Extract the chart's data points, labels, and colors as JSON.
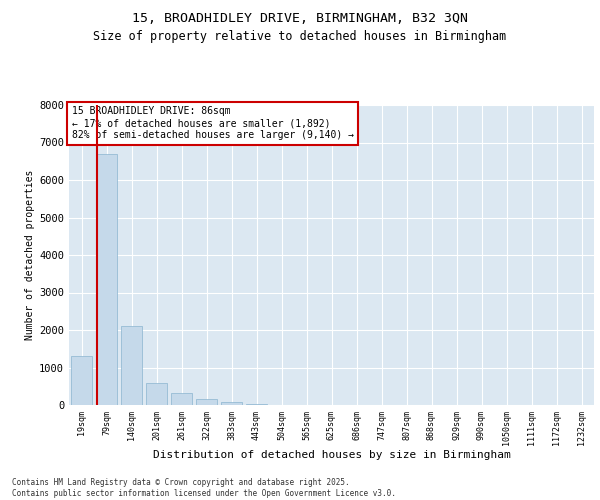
{
  "title1": "15, BROADHIDLEY DRIVE, BIRMINGHAM, B32 3QN",
  "title2": "Size of property relative to detached houses in Birmingham",
  "xlabel": "Distribution of detached houses by size in Birmingham",
  "ylabel": "Number of detached properties",
  "categories": [
    "19sqm",
    "79sqm",
    "140sqm",
    "201sqm",
    "261sqm",
    "322sqm",
    "383sqm",
    "443sqm",
    "504sqm",
    "565sqm",
    "625sqm",
    "686sqm",
    "747sqm",
    "807sqm",
    "868sqm",
    "929sqm",
    "990sqm",
    "1050sqm",
    "1111sqm",
    "1172sqm",
    "1232sqm"
  ],
  "values": [
    1300,
    6700,
    2100,
    600,
    310,
    155,
    70,
    35,
    12,
    5,
    3,
    1,
    0,
    0,
    0,
    0,
    0,
    0,
    0,
    0,
    0
  ],
  "bar_color": "#c5d9ea",
  "bar_edge_color": "#8ab4d0",
  "vline_color": "#cc0000",
  "vline_pos": 0.6,
  "annotation_text": "15 BROADHIDLEY DRIVE: 86sqm\n← 17% of detached houses are smaller (1,892)\n82% of semi-detached houses are larger (9,140) →",
  "annotation_box_facecolor": "#ffffff",
  "annotation_box_edgecolor": "#cc0000",
  "bg_color": "#dce8f2",
  "footer1": "Contains HM Land Registry data © Crown copyright and database right 2025.",
  "footer2": "Contains public sector information licensed under the Open Government Licence v3.0.",
  "ylim": [
    0,
    8000
  ],
  "yticks": [
    0,
    1000,
    2000,
    3000,
    4000,
    5000,
    6000,
    7000,
    8000
  ]
}
